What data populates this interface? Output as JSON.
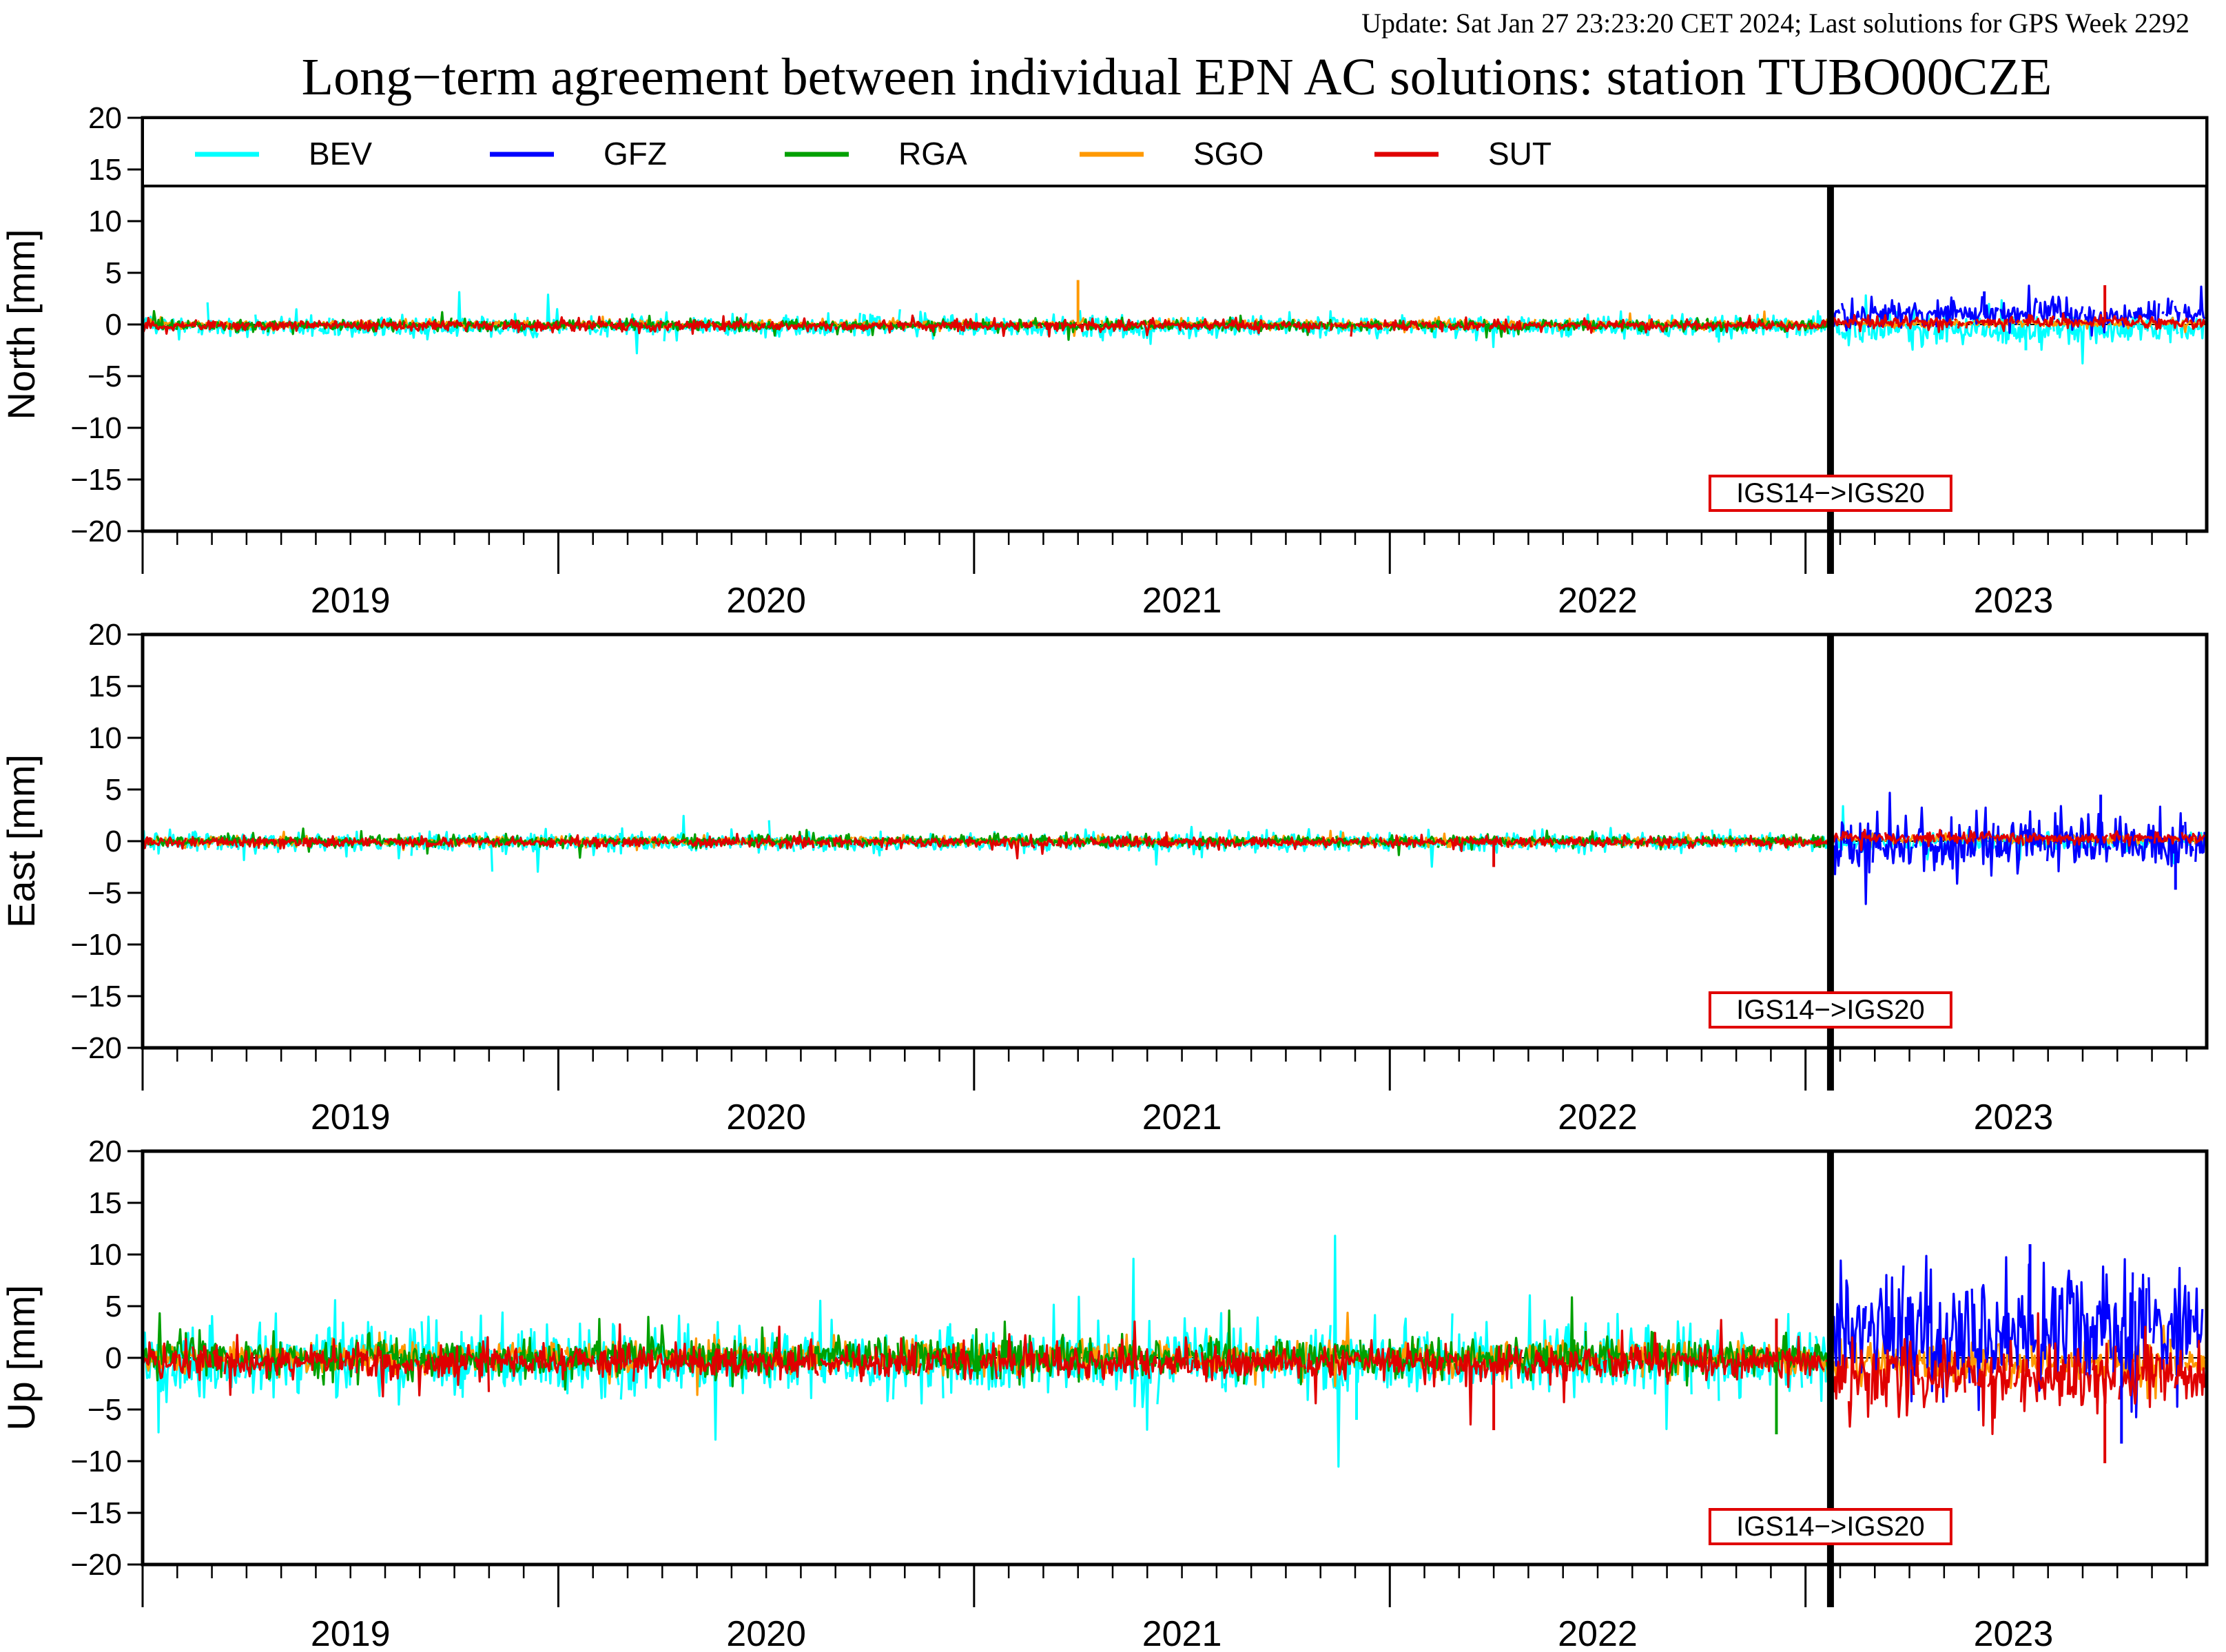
{
  "update_text": "Update: Sat Jan 27 23:23:20 CET 2024; Last solutions for GPS Week 2292",
  "update_color": "#8b1a1a",
  "chart_data": {
    "type": "line",
    "title": "Long−term agreement between individual EPN AC solutions: station TUBO00CZE",
    "x_range": [
      2018.5,
      2023.465
    ],
    "x_ticks": [
      2019,
      2020,
      2021,
      2022,
      2023
    ],
    "x_tick_labels": [
      "2019",
      "2020",
      "2021",
      "2022",
      "2023"
    ],
    "ylim": [
      -20,
      20
    ],
    "y_ticks": [
      20,
      15,
      10,
      5,
      0,
      -5,
      -10,
      -15,
      -20
    ],
    "y_tick_labels": [
      "20",
      "15",
      "10",
      "5",
      "0",
      "−5",
      "−10",
      "−15",
      "−20"
    ],
    "legend_placement": "top",
    "series": [
      {
        "name": "BEV",
        "color": "#00ffff"
      },
      {
        "name": "GFZ",
        "color": "#0000ff"
      },
      {
        "name": "RGA",
        "color": "#00a000"
      },
      {
        "name": "SGO",
        "color": "#ff9900"
      },
      {
        "name": "SUT",
        "color": "#e00000"
      }
    ],
    "event": {
      "x": 2022.56,
      "label": "IGS14−>IGS20",
      "color": "#e00000"
    },
    "panels": [
      {
        "ylabel": "North [mm]",
        "stats": [
          {
            "series": "BEV",
            "before": [
              -0.2,
              0.5
            ],
            "after": [
              -0.5,
              0.7
            ]
          },
          {
            "series": "GFZ",
            "before": null,
            "after": [
              0.9,
              0.7
            ]
          },
          {
            "series": "RGA",
            "before": [
              -0.1,
              0.25
            ],
            "after": null
          },
          {
            "series": "SGO",
            "before": [
              0.0,
              0.2
            ],
            "after": [
              0.1,
              0.15
            ]
          },
          {
            "series": "SUT",
            "before": [
              -0.1,
              0.25
            ],
            "after": [
              0.2,
              0.3
            ]
          }
        ],
        "spikes": [
          {
            "series": "SGO",
            "x": 2020.75,
            "y": 4.3
          },
          {
            "series": "GFZ",
            "x": 2022.93,
            "y": 3.2
          },
          {
            "series": "SUT",
            "x": 2023.22,
            "y": 3.8
          },
          {
            "series": "BEV",
            "x": 2023.03,
            "y": -2.5
          }
        ]
      },
      {
        "ylabel": "East [mm]",
        "stats": [
          {
            "series": "BEV",
            "before": [
              -0.1,
              0.45
            ],
            "after": [
              0.0,
              0.4
            ]
          },
          {
            "series": "GFZ",
            "before": null,
            "after": [
              -0.4,
              1.3
            ]
          },
          {
            "series": "RGA",
            "before": [
              0.0,
              0.25
            ],
            "after": null
          },
          {
            "series": "SGO",
            "before": [
              0.0,
              0.2
            ],
            "after": [
              0.2,
              0.2
            ]
          },
          {
            "series": "SUT",
            "before": [
              -0.1,
              0.25
            ],
            "after": [
              0.3,
              0.3
            ]
          }
        ],
        "spikes": [
          {
            "series": "SUT",
            "x": 2021.75,
            "y": -2.5
          },
          {
            "series": "GFZ",
            "x": 2023.21,
            "y": 4.5
          },
          {
            "series": "GFZ",
            "x": 2023.39,
            "y": -4.7
          }
        ]
      },
      {
        "ylabel": "Up [mm]",
        "stats": [
          {
            "series": "BEV",
            "before": [
              -0.3,
              1.6
            ],
            "after": null
          },
          {
            "series": "GFZ",
            "before": null,
            "after": [
              2.6,
              2.9
            ]
          },
          {
            "series": "RGA",
            "before": [
              0.0,
              0.9
            ],
            "after": null
          },
          {
            "series": "SGO",
            "before": [
              0.0,
              0.7
            ],
            "after": [
              -0.4,
              1.0
            ]
          },
          {
            "series": "SUT",
            "before": [
              -0.4,
              0.8
            ],
            "after": [
              -2.0,
              1.6
            ]
          }
        ],
        "spikes": [
          {
            "series": "SUT",
            "x": 2021.75,
            "y": -7.0
          },
          {
            "series": "BEV",
            "x": 2021.42,
            "y": -6.0
          },
          {
            "series": "RGA",
            "x": 2022.43,
            "y": -7.4
          },
          {
            "series": "SUT",
            "x": 2022.43,
            "y": 3.8
          },
          {
            "series": "GFZ",
            "x": 2023.04,
            "y": 11.0
          },
          {
            "series": "SUT",
            "x": 2023.22,
            "y": -10.2
          },
          {
            "series": "GFZ",
            "x": 2023.26,
            "y": -8.3
          }
        ]
      }
    ]
  }
}
